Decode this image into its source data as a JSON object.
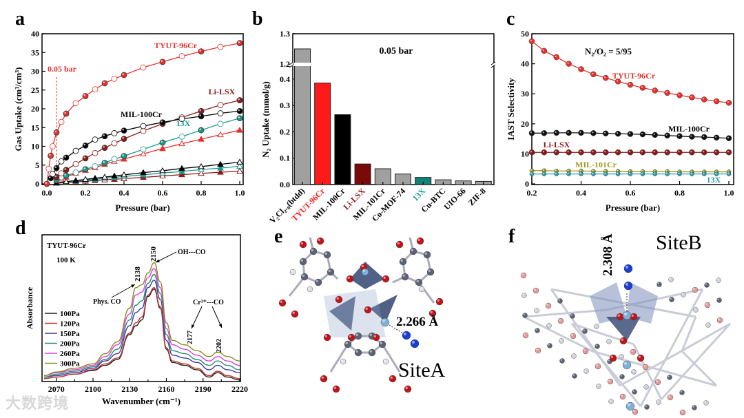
{
  "panels": {
    "a": "a",
    "b": "b",
    "c": "c",
    "d": "d",
    "e": "e",
    "f": "f"
  },
  "watermark": "大数跨境",
  "chart_data": [
    {
      "id": "a",
      "type": "line",
      "xlabel": "Pressure (bar)",
      "ylabel": "Gas Uptake (cm³/cm³)",
      "xlim": [
        0,
        1.0
      ],
      "ylim": [
        0,
        40
      ],
      "xticks": [
        "0.0",
        "0.2",
        "0.4",
        "0.6",
        "0.8",
        "1.0"
      ],
      "yticks": [
        "0",
        "5",
        "10",
        "15",
        "20",
        "25",
        "30",
        "35",
        "40"
      ],
      "annotations": [
        {
          "text": "TYUT-96Cr",
          "color": "#e8302a"
        },
        {
          "text": "Li-LSX",
          "color": "#8b1a1a"
        },
        {
          "text": "MIL-100Cr",
          "color": "#000000"
        },
        {
          "text": "13X",
          "color": "#1a9a8f"
        },
        {
          "text": "0.05 bar",
          "color": "#e8302a"
        }
      ],
      "marker_line_x": 0.05,
      "series": [
        {
          "name": "TYUT-96Cr N2",
          "color": "#e8302a",
          "marker": "circle",
          "x": [
            0,
            0.01,
            0.02,
            0.03,
            0.05,
            0.075,
            0.1,
            0.15,
            0.2,
            0.25,
            0.3,
            0.35,
            0.4,
            0.5,
            0.6,
            0.7,
            0.8,
            0.9,
            1.0
          ],
          "y": [
            0,
            4,
            7.5,
            10,
            13.7,
            16.5,
            18.7,
            21.5,
            23.4,
            25.2,
            26.8,
            28,
            29,
            31,
            32.5,
            34,
            35.3,
            36.5,
            37.5
          ]
        },
        {
          "name": "MIL-100Cr N2",
          "color": "#000000",
          "marker": "circle",
          "x": [
            0.02,
            0.03,
            0.05,
            0.075,
            0.1,
            0.15,
            0.2,
            0.25,
            0.3,
            0.35,
            0.4,
            0.5,
            0.6,
            0.7,
            0.8,
            0.9,
            1.0
          ],
          "y": [
            1.5,
            2.6,
            4.2,
            6,
            7,
            8.8,
            10.2,
            11.8,
            12.7,
            13.5,
            14.2,
            15.4,
            16.4,
            17.3,
            18,
            18.8,
            19.4
          ]
        },
        {
          "name": "Li-LSX N2",
          "color": "#8b1a1a",
          "marker": "circle",
          "x": [
            0.05,
            0.075,
            0.1,
            0.15,
            0.2,
            0.25,
            0.3,
            0.35,
            0.4,
            0.5,
            0.6,
            0.7,
            0.8,
            0.9,
            1.0
          ],
          "y": [
            1.8,
            2.8,
            3.7,
            5.3,
            6.8,
            8.2,
            9.6,
            10.8,
            12,
            14.1,
            16,
            17.7,
            19.4,
            21,
            22.3
          ]
        },
        {
          "name": "13X N2",
          "color": "#1a9a8f",
          "marker": "circle",
          "x": [
            0.05,
            0.075,
            0.1,
            0.15,
            0.2,
            0.25,
            0.3,
            0.35,
            0.4,
            0.5,
            0.6,
            0.7,
            0.8,
            0.9,
            1.0
          ],
          "y": [
            1,
            1.8,
            2.2,
            3,
            3.9,
            4.7,
            5.6,
            6.6,
            7.4,
            9.2,
            11,
            12.6,
            14.3,
            16,
            17.5
          ]
        },
        {
          "name": "TYUT-96Cr O2",
          "color": "#e8302a",
          "marker": "triangle",
          "x": [
            0.05,
            0.075,
            0.1,
            0.15,
            0.2,
            0.25,
            0.3,
            0.35,
            0.4,
            0.5,
            0.6,
            0.7,
            0.8,
            0.9,
            1.0
          ],
          "y": [
            0.8,
            1.3,
            1.8,
            2.8,
            3.6,
            4.3,
            5.2,
            6,
            6.6,
            8,
            9.4,
            10.7,
            11.9,
            13.1,
            14.3
          ]
        },
        {
          "name": "MIL-100Cr O2",
          "color": "#000000",
          "marker": "triangle",
          "x": [
            0.05,
            0.1,
            0.15,
            0.2,
            0.25,
            0.3,
            0.35,
            0.4,
            0.5,
            0.6,
            0.7,
            0.8,
            0.9,
            1.0
          ],
          "y": [
            0.3,
            0.6,
            0.9,
            1.2,
            1.5,
            1.8,
            2.1,
            2.4,
            3,
            3.5,
            4.1,
            4.6,
            5.2,
            5.8
          ]
        },
        {
          "name": "13X O2",
          "color": "#1a9a8f",
          "marker": "triangle",
          "x": [
            0.05,
            0.1,
            0.15,
            0.2,
            0.25,
            0.3,
            0.35,
            0.4,
            0.5,
            0.6,
            0.7,
            0.8,
            0.9,
            1.0
          ],
          "y": [
            0.2,
            0.5,
            0.7,
            1,
            1.2,
            1.5,
            1.7,
            2,
            2.4,
            2.9,
            3.3,
            3.8,
            4.2,
            4.7
          ]
        },
        {
          "name": "Li-LSX O2",
          "color": "#8b1a1a",
          "marker": "triangle",
          "x": [
            0.05,
            0.1,
            0.15,
            0.2,
            0.25,
            0.3,
            0.35,
            0.4,
            0.5,
            0.6,
            0.7,
            0.8,
            0.9,
            1.0
          ],
          "y": [
            0.15,
            0.35,
            0.5,
            0.7,
            0.9,
            1.05,
            1.2,
            1.4,
            1.75,
            2.1,
            2.45,
            2.8,
            3.1,
            3.4
          ]
        }
      ]
    },
    {
      "id": "b",
      "type": "bar",
      "title": "0.05 bar",
      "ylabel": "N₂ Uptake (mmol/g)",
      "ylim_lower": [
        0,
        0.45
      ],
      "ylim_upper": [
        1.2,
        1.3
      ],
      "yticks": [
        "0.0",
        "0.1",
        "0.2",
        "0.3",
        "0.4",
        "1.2",
        "1.3"
      ],
      "categories": [
        "V₂Cl₂.₈(btdd)",
        "TYUT-96Cr",
        "MIL-100Cr",
        "Li-LSX",
        "MIL-101Cr",
        "Co-MOF-74",
        "13X",
        "Cu-BTC",
        "UIO-66",
        "ZIF-8"
      ],
      "values": [
        1.25,
        0.385,
        0.265,
        0.078,
        0.06,
        0.04,
        0.027,
        0.018,
        0.014,
        0.012
      ],
      "colors": [
        "#a0a0a0",
        "#ff1a1a",
        "#000000",
        "#7a0a0a",
        "#a0a0a0",
        "#a0a0a0",
        "#138278",
        "#a0a0a0",
        "#a0a0a0",
        "#a0a0a0"
      ],
      "label_colors": [
        "#000000",
        "#ff1a1a",
        "#000000",
        "#8b1a1a",
        "#000000",
        "#000000",
        "#1a9a8f",
        "#000000",
        "#000000",
        "#000000"
      ]
    },
    {
      "id": "c",
      "type": "line",
      "title": "N₂/O₂ = 5/95",
      "xlabel": "Pressure (bar)",
      "ylabel": "IAST Selectivity",
      "xlim": [
        0.2,
        1.0
      ],
      "ylim": [
        0,
        50
      ],
      "xticks": [
        "0.2",
        "0.4",
        "0.6",
        "0.8",
        "1.0"
      ],
      "yticks": [
        "0",
        "10",
        "20",
        "30",
        "40",
        "50"
      ],
      "series": [
        {
          "name": "TYUT-96Cr",
          "color": "#e8302a",
          "x": [
            0.2,
            0.25,
            0.3,
            0.35,
            0.4,
            0.45,
            0.5,
            0.55,
            0.6,
            0.65,
            0.7,
            0.75,
            0.8,
            0.85,
            0.9,
            0.95,
            1.0
          ],
          "y": [
            47.5,
            44.3,
            42.2,
            40,
            38.2,
            36.5,
            35.3,
            34.1,
            33,
            32,
            31.1,
            30.3,
            29.5,
            28.8,
            28.1,
            27.5,
            27
          ]
        },
        {
          "name": "MIL-100Cr",
          "color": "#111111",
          "x": [
            0.2,
            0.25,
            0.3,
            0.35,
            0.4,
            0.45,
            0.5,
            0.55,
            0.6,
            0.65,
            0.7,
            0.75,
            0.8,
            0.85,
            0.9,
            0.95,
            1.0
          ],
          "y": [
            16.9,
            16.9,
            17,
            17,
            17,
            16.9,
            16.8,
            16.7,
            16.6,
            16.5,
            16.3,
            16.1,
            15.9,
            15.7,
            15.6,
            15.4,
            15.2
          ]
        },
        {
          "name": "Li-LSX",
          "color": "#8b1a1a",
          "x": [
            0.2,
            0.25,
            0.3,
            0.35,
            0.4,
            0.45,
            0.5,
            0.55,
            0.6,
            0.65,
            0.7,
            0.75,
            0.8,
            0.85,
            0.9,
            0.95,
            1.0
          ],
          "y": [
            10.5,
            10.5,
            10.5,
            10.5,
            10.5,
            10.5,
            10.5,
            10.5,
            10.5,
            10.5,
            10.5,
            10.5,
            10.5,
            10.5,
            10.5,
            10.5,
            10.5
          ]
        },
        {
          "name": "MIL-101Cr",
          "color": "#9a9a20",
          "x": [
            0.2,
            0.25,
            0.3,
            0.35,
            0.4,
            0.45,
            0.5,
            0.55,
            0.6,
            0.65,
            0.7,
            0.75,
            0.8,
            0.85,
            0.9,
            0.95,
            1.0
          ],
          "y": [
            4.4,
            4.4,
            4.3,
            4.3,
            4.3,
            4.2,
            4.2,
            4.2,
            4.1,
            4.1,
            4.1,
            4.1,
            4,
            4,
            4,
            4,
            4
          ]
        },
        {
          "name": "13X",
          "color": "#2aa0b0",
          "x": [
            0.2,
            0.25,
            0.3,
            0.35,
            0.4,
            0.45,
            0.5,
            0.55,
            0.6,
            0.65,
            0.7,
            0.75,
            0.8,
            0.85,
            0.9,
            0.95,
            1.0
          ],
          "y": [
            3.3,
            3.3,
            3.3,
            3.3,
            3.3,
            3.3,
            3.3,
            3.3,
            3.3,
            3.3,
            3.3,
            3.3,
            3.3,
            3.3,
            3.3,
            3.3,
            3.3
          ]
        }
      ],
      "annotations": [
        {
          "text": "TYUT-96Cr",
          "color": "#e8302a"
        },
        {
          "text": "MIL-100Cr",
          "color": "#000000"
        },
        {
          "text": "Li-LSX",
          "color": "#8b1a1a"
        },
        {
          "text": "MIL-101Cr",
          "color": "#9a9a20"
        },
        {
          "text": "13X",
          "color": "#2aa0b0"
        }
      ]
    },
    {
      "id": "d",
      "type": "line",
      "xlabel": "Wavenumber (cm⁻¹)",
      "ylabel": "Absorbance",
      "xlim": [
        2060,
        2220
      ],
      "ylim": [
        0,
        1
      ],
      "xticks": [
        "2070",
        "2100",
        "2130",
        "2160",
        "2190",
        "2220"
      ],
      "sample": "TYUT-96Cr",
      "temperature": "100 K",
      "annotations": {
        "p2150": "2150",
        "p2138": "2138",
        "p2177": "2177",
        "p2202": "2202",
        "oh_co": "OH---CO",
        "phys_co": "Phys. CO",
        "cr_co": "Cr³⁺---CO"
      },
      "x": [
        2060,
        2070,
        2085,
        2100,
        2110,
        2120,
        2130,
        2135,
        2140,
        2145,
        2150,
        2155,
        2160,
        2165,
        2175,
        2185,
        2195,
        2202,
        2210,
        2220
      ],
      "series": [
        {
          "name": "100Pa",
          "color": "#222222",
          "y": [
            0.02,
            0.03,
            0.05,
            0.075,
            0.11,
            0.15,
            0.32,
            0.38,
            0.42,
            0.58,
            0.63,
            0.5,
            0.22,
            0.13,
            0.11,
            0.08,
            0.03,
            0.06,
            0.03,
            0.01
          ]
        },
        {
          "name": "120Pa",
          "color": "#c8352d",
          "y": [
            0.02,
            0.03,
            0.05,
            0.08,
            0.12,
            0.16,
            0.33,
            0.4,
            0.44,
            0.59,
            0.64,
            0.51,
            0.23,
            0.14,
            0.12,
            0.09,
            0.04,
            0.07,
            0.04,
            0.02
          ]
        },
        {
          "name": "150Pa",
          "color": "#3a3aa8",
          "y": [
            0.03,
            0.04,
            0.06,
            0.09,
            0.14,
            0.19,
            0.38,
            0.47,
            0.5,
            0.64,
            0.69,
            0.56,
            0.28,
            0.18,
            0.16,
            0.13,
            0.08,
            0.11,
            0.08,
            0.06
          ]
        },
        {
          "name": "200Pa",
          "color": "#2a8a7a",
          "y": [
            0.03,
            0.05,
            0.07,
            0.1,
            0.15,
            0.22,
            0.42,
            0.52,
            0.55,
            0.67,
            0.73,
            0.6,
            0.32,
            0.21,
            0.19,
            0.15,
            0.11,
            0.14,
            0.11,
            0.08
          ]
        },
        {
          "name": "260Pa",
          "color": "#e040e0",
          "y": [
            0.04,
            0.06,
            0.08,
            0.11,
            0.17,
            0.25,
            0.46,
            0.59,
            0.61,
            0.71,
            0.77,
            0.64,
            0.36,
            0.25,
            0.22,
            0.18,
            0.14,
            0.17,
            0.14,
            0.11
          ]
        },
        {
          "name": "300Pa",
          "color": "#8a8a20",
          "y": [
            0.04,
            0.065,
            0.09,
            0.12,
            0.19,
            0.27,
            0.5,
            0.64,
            0.66,
            0.74,
            0.81,
            0.68,
            0.4,
            0.28,
            0.25,
            0.21,
            0.17,
            0.2,
            0.17,
            0.14
          ]
        }
      ]
    }
  ],
  "structures": {
    "e": {
      "distance": "2.266 Å",
      "site": "SiteA"
    },
    "f": {
      "distance": "2.308 Å",
      "site": "SiteB"
    }
  }
}
